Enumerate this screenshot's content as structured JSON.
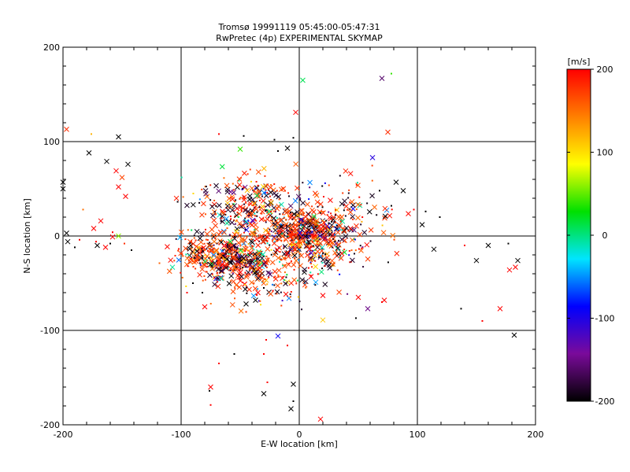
{
  "chart_data": {
    "type": "scatter",
    "title": "Tromsø 19991119 05:45:00-05:47:31",
    "subtitle": "RwPretec (4p) EXPERIMENTAL SKYMAP",
    "xlabel": "E-W location [km]",
    "ylabel": "N-S location [km]",
    "xlim": [
      -200,
      200
    ],
    "ylim": [
      -200,
      200
    ],
    "xticks": [
      -200,
      -100,
      0,
      100,
      200
    ],
    "yticks": [
      -200,
      -100,
      0,
      100,
      200
    ],
    "grid": true,
    "colorbar": {
      "label": "[m/s]",
      "range": [
        -200,
        200
      ],
      "ticks": [
        200,
        100,
        0,
        -100,
        -200
      ],
      "colormap": "black-purple-blue-cyan-green-yellow-red"
    },
    "marker_types": [
      "large cross",
      "small dot"
    ],
    "color_stops": [
      "#000000",
      "#7a0a9a",
      "#0000ff",
      "#00e5ff",
      "#00e000",
      "#ffff00",
      "#ff7f00",
      "#ff0000"
    ],
    "points": [
      [
        -197,
        113,
        180,
        "x"
      ],
      [
        -178,
        88,
        -200,
        "x"
      ],
      [
        -176,
        108,
        120,
        "d"
      ],
      [
        -153,
        105,
        -200,
        "x"
      ],
      [
        -163,
        79,
        -200,
        "x"
      ],
      [
        -145,
        76,
        -200,
        "x"
      ],
      [
        -155,
        69,
        200,
        "x"
      ],
      [
        -150,
        62,
        170,
        "x"
      ],
      [
        -153,
        52,
        200,
        "x"
      ],
      [
        -147,
        42,
        200,
        "x"
      ],
      [
        -200,
        57,
        -200,
        "x"
      ],
      [
        -200,
        50,
        -200,
        "x"
      ],
      [
        -168,
        16,
        200,
        "x"
      ],
      [
        -174,
        8,
        200,
        "x"
      ],
      [
        -183,
        28,
        150,
        "d"
      ],
      [
        -197,
        3,
        -200,
        "x"
      ],
      [
        -196,
        -6,
        -200,
        "x"
      ],
      [
        -186,
        -4,
        200,
        "d"
      ],
      [
        -172,
        -6,
        200,
        "d"
      ],
      [
        -158,
        -1,
        200,
        "x"
      ],
      [
        -153,
        0,
        60,
        "x"
      ],
      [
        -148,
        -8,
        180,
        "d"
      ],
      [
        -160,
        -8,
        -200,
        "d"
      ],
      [
        -142,
        -15,
        -200,
        "d"
      ],
      [
        -164,
        -12,
        200,
        "x"
      ],
      [
        -171,
        -10,
        -200,
        "x"
      ],
      [
        -158,
        4,
        200,
        "d"
      ],
      [
        -190,
        -12,
        -200,
        "d"
      ],
      [
        75,
        110,
        180,
        "x"
      ],
      [
        70,
        167,
        -160,
        "x"
      ],
      [
        78,
        172,
        40,
        "d"
      ],
      [
        3,
        165,
        10,
        "x"
      ],
      [
        -3,
        131,
        200,
        "x"
      ],
      [
        -5,
        104,
        -200,
        "d"
      ],
      [
        -21,
        102,
        -200,
        "d"
      ],
      [
        -47,
        106,
        -200,
        "d"
      ],
      [
        -68,
        108,
        200,
        "d"
      ],
      [
        -50,
        92,
        40,
        "x"
      ],
      [
        -18,
        90,
        -200,
        "d"
      ],
      [
        -10,
        93,
        -200,
        "x"
      ],
      [
        68,
        48,
        -200,
        "d"
      ],
      [
        78,
        32,
        -200,
        "d"
      ],
      [
        82,
        57,
        -200,
        "x"
      ],
      [
        88,
        48,
        -200,
        "x"
      ],
      [
        97,
        28,
        200,
        "d"
      ],
      [
        104,
        12,
        -200,
        "x"
      ],
      [
        107,
        26,
        -200,
        "d"
      ],
      [
        119,
        20,
        -200,
        "d"
      ],
      [
        114,
        -14,
        -200,
        "x"
      ],
      [
        160,
        -10,
        -200,
        "x"
      ],
      [
        150,
        -26,
        -200,
        "x"
      ],
      [
        185,
        -26,
        -200,
        "x"
      ],
      [
        183,
        -33,
        200,
        "x"
      ],
      [
        178,
        -36,
        200,
        "x"
      ],
      [
        170,
        -77,
        200,
        "x"
      ],
      [
        155,
        -90,
        200,
        "d"
      ],
      [
        137,
        -77,
        -200,
        "d"
      ],
      [
        177,
        -8,
        -200,
        "d"
      ],
      [
        182,
        -105,
        -200,
        "x"
      ],
      [
        140,
        -10,
        200,
        "d"
      ],
      [
        -18,
        -106,
        -90,
        "x"
      ],
      [
        -28,
        -110,
        200,
        "d"
      ],
      [
        -10,
        -116,
        200,
        "d"
      ],
      [
        -30,
        -125,
        200,
        "d"
      ],
      [
        -55,
        -125,
        -200,
        "d"
      ],
      [
        -68,
        -135,
        200,
        "d"
      ],
      [
        -75,
        -160,
        200,
        "x"
      ],
      [
        -76,
        -164,
        -200,
        "d"
      ],
      [
        -75,
        -179,
        200,
        "d"
      ],
      [
        -30,
        -167,
        -200,
        "x"
      ],
      [
        -27,
        -155,
        200,
        "d"
      ],
      [
        -5,
        -157,
        -200,
        "x"
      ],
      [
        -7,
        -183,
        -200,
        "x"
      ],
      [
        -5,
        -175,
        -200,
        "d"
      ],
      [
        18,
        -194,
        200,
        "x"
      ],
      [
        20,
        -89,
        110,
        "x"
      ],
      [
        48,
        -87,
        -200,
        "d"
      ],
      [
        70,
        -70,
        200,
        "d"
      ],
      [
        20,
        -63,
        200,
        "x"
      ],
      [
        50,
        -65,
        200,
        "x"
      ],
      [
        58,
        -77,
        -150,
        "x"
      ],
      [
        72,
        -68,
        200,
        "x"
      ],
      [
        10,
        -43,
        200,
        "x"
      ],
      [
        -11,
        -50,
        -200,
        "d"
      ],
      [
        -37,
        -68,
        -200,
        "x"
      ],
      [
        -35,
        -60,
        200,
        "x"
      ],
      [
        -30,
        -55,
        -200,
        "d"
      ],
      [
        -45,
        -72,
        -200,
        "x"
      ],
      [
        -95,
        -60,
        200,
        "d"
      ],
      [
        -90,
        -50,
        -200,
        "d"
      ],
      [
        -80,
        -75,
        200,
        "x"
      ],
      [
        -82,
        -60,
        -200,
        "d"
      ]
    ]
  }
}
